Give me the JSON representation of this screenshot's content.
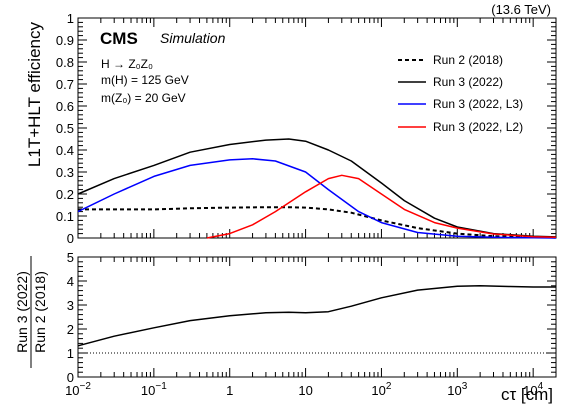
{
  "header": {
    "experiment": "CMS",
    "status": "Simulation",
    "energy": "(13.6 TeV)"
  },
  "annotations": {
    "process": "H → Z₀Z₀",
    "mass_h": "m(H) = 125 GeV",
    "mass_z": "m(Z₀) = 20 GeV"
  },
  "chart_data": [
    {
      "type": "line",
      "panel": "efficiency",
      "ylabel": "L1T+HLT efficiency",
      "xscale": "log",
      "xlim": [
        0.01,
        20000
      ],
      "ylim": [
        0,
        1
      ],
      "yticks": [
        "0",
        "0.1",
        "0.2",
        "0.3",
        "0.4",
        "0.5",
        "0.6",
        "0.7",
        "0.8",
        "0.9",
        "1"
      ],
      "legend_position": "right",
      "series": [
        {
          "name": "Run 2 (2018)",
          "color": "#000000",
          "style": "dashed",
          "x": [
            0.01,
            0.03,
            0.1,
            0.3,
            1,
            3,
            6,
            10,
            20,
            40,
            100,
            300,
            1000,
            3000,
            10000,
            20000
          ],
          "y": [
            0.13,
            0.13,
            0.13,
            0.135,
            0.138,
            0.14,
            0.14,
            0.138,
            0.13,
            0.115,
            0.08,
            0.045,
            0.02,
            0.008,
            0.003,
            0.002
          ]
        },
        {
          "name": "Run 3 (2022)",
          "color": "#000000",
          "style": "solid",
          "x": [
            0.01,
            0.03,
            0.1,
            0.3,
            1,
            3,
            6,
            10,
            20,
            40,
            100,
            200,
            500,
            1000,
            3000,
            10000,
            20000
          ],
          "y": [
            0.2,
            0.27,
            0.33,
            0.39,
            0.425,
            0.445,
            0.45,
            0.44,
            0.4,
            0.35,
            0.25,
            0.17,
            0.09,
            0.05,
            0.02,
            0.008,
            0.005
          ]
        },
        {
          "name": "Run 3 (2022, L3)",
          "color": "#0000ff",
          "style": "solid",
          "x": [
            0.01,
            0.03,
            0.1,
            0.3,
            1,
            2,
            4,
            10,
            20,
            50,
            100,
            300,
            1000,
            3000,
            10000,
            20000
          ],
          "y": [
            0.12,
            0.2,
            0.28,
            0.33,
            0.355,
            0.36,
            0.35,
            0.3,
            0.22,
            0.12,
            0.07,
            0.025,
            0.008,
            0.003,
            0.001,
            0.0
          ]
        },
        {
          "name": "Run 3 (2022, L2)",
          "color": "#ff0000",
          "style": "solid",
          "x": [
            0.5,
            1,
            2,
            4,
            10,
            20,
            30,
            50,
            100,
            200,
            500,
            1000,
            3000,
            10000,
            20000
          ],
          "y": [
            0.0,
            0.02,
            0.06,
            0.12,
            0.21,
            0.27,
            0.285,
            0.27,
            0.2,
            0.13,
            0.07,
            0.045,
            0.018,
            0.006,
            0.003
          ]
        }
      ]
    },
    {
      "type": "line",
      "panel": "ratio",
      "ylabel_top": "Run 3 (2022)",
      "ylabel_bottom": "Run 2 (2018)",
      "xlabel": "cτ [cm]",
      "xscale": "log",
      "xlim": [
        0.01,
        20000
      ],
      "ylim": [
        0,
        5
      ],
      "yticks": [
        "0",
        "1",
        "2",
        "3",
        "4",
        "5"
      ],
      "xticks": [
        {
          "value": 0.01,
          "base": "10",
          "exp": "−2"
        },
        {
          "value": 0.1,
          "base": "10",
          "exp": "−1"
        },
        {
          "value": 1,
          "base": "1",
          "exp": ""
        },
        {
          "value": 10,
          "base": "10",
          "exp": ""
        },
        {
          "value": 100,
          "base": "10",
          "exp": "2"
        },
        {
          "value": 1000,
          "base": "10",
          "exp": "3"
        },
        {
          "value": 10000,
          "base": "10",
          "exp": "4"
        }
      ],
      "reference_line": 1,
      "series": [
        {
          "name": "Run 3 (2022) / Run 2 (2018)",
          "color": "#000000",
          "x": [
            0.01,
            0.03,
            0.1,
            0.3,
            1,
            3,
            6,
            10,
            20,
            40,
            100,
            300,
            1000,
            2000,
            5000,
            10000,
            20000
          ],
          "y": [
            1.3,
            1.7,
            2.05,
            2.35,
            2.55,
            2.68,
            2.7,
            2.68,
            2.72,
            2.95,
            3.3,
            3.62,
            3.78,
            3.8,
            3.77,
            3.75,
            3.75
          ]
        }
      ]
    }
  ]
}
